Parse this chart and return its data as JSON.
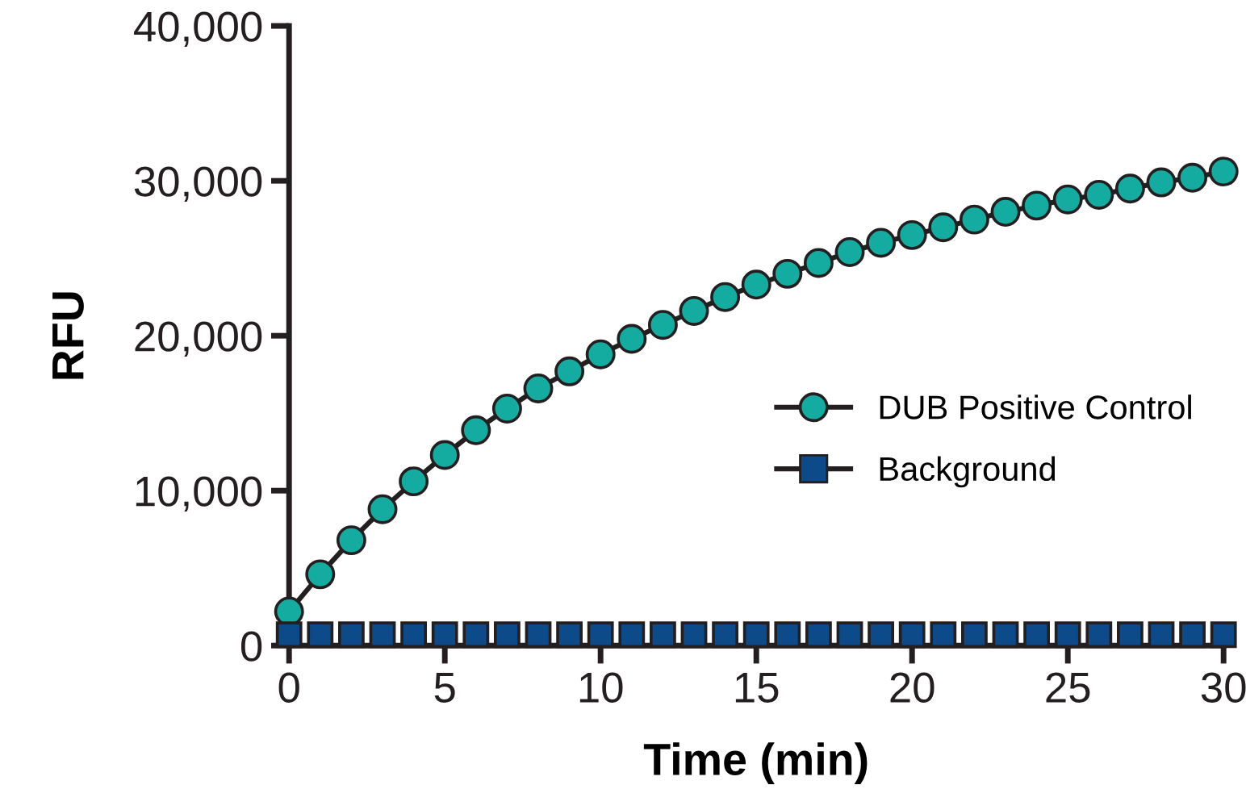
{
  "chart_data": {
    "type": "line",
    "xlabel": "Time (min)",
    "ylabel": "RFU",
    "x": [
      0,
      1,
      2,
      3,
      4,
      5,
      6,
      7,
      8,
      9,
      10,
      11,
      12,
      13,
      14,
      15,
      16,
      17,
      18,
      19,
      20,
      21,
      22,
      23,
      24,
      25,
      26,
      27,
      28,
      29,
      30
    ],
    "series": [
      {
        "name": "DUB Positive Control",
        "color": "#14aca0",
        "marker": "circle",
        "values": [
          2200,
          4600,
          6800,
          8800,
          10600,
          12300,
          13900,
          15300,
          16600,
          17700,
          18800,
          19800,
          20700,
          21600,
          22500,
          23300,
          24000,
          24700,
          25400,
          26000,
          26500,
          27000,
          27500,
          28000,
          28400,
          28800,
          29100,
          29500,
          29900,
          30200,
          30600
        ]
      },
      {
        "name": "Background",
        "type": "scatter",
        "color": "#0c4a8a",
        "marker": "square",
        "values": [
          700,
          700,
          700,
          700,
          700,
          700,
          700,
          700,
          700,
          700,
          700,
          700,
          700,
          700,
          700,
          700,
          700,
          700,
          700,
          700,
          700,
          700,
          700,
          700,
          700,
          700,
          700,
          700,
          700,
          700,
          700
        ]
      }
    ],
    "xlim": [
      0,
      30
    ],
    "xticks": [
      0,
      5,
      10,
      15,
      20,
      25,
      30
    ],
    "ylim": [
      0,
      40000
    ],
    "yticks": [
      {
        "value": 0,
        "label": "0"
      },
      {
        "value": 10000,
        "label": "10,000"
      },
      {
        "value": 20000,
        "label": "20,000"
      },
      {
        "value": 30000,
        "label": "30,000"
      },
      {
        "value": 40000,
        "label": "40,000"
      }
    ],
    "grid": false,
    "legend": "right",
    "line_style": "solid"
  }
}
